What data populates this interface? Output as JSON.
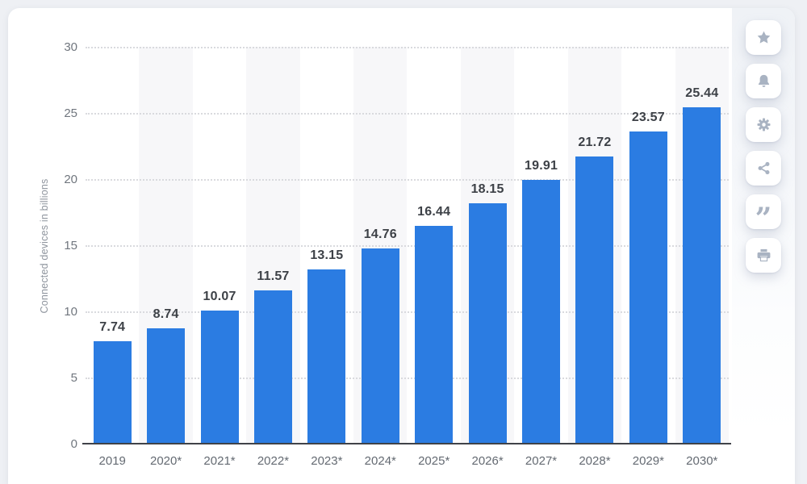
{
  "chart_data": {
    "type": "bar",
    "title": "",
    "categories": [
      "2019",
      "2020*",
      "2021*",
      "2022*",
      "2023*",
      "2024*",
      "2025*",
      "2026*",
      "2027*",
      "2028*",
      "2029*",
      "2030*"
    ],
    "values": [
      7.74,
      8.74,
      10.07,
      11.57,
      13.15,
      14.76,
      16.44,
      18.15,
      19.91,
      21.72,
      23.57,
      25.44
    ],
    "value_labels": [
      "7.74",
      "8.74",
      "10.07",
      "11.57",
      "13.15",
      "14.76",
      "16.44",
      "18.15",
      "19.91",
      "21.72",
      "23.57",
      "25.44"
    ],
    "xlabel": "",
    "ylabel": "Connected devices in billions",
    "ylim": [
      0,
      30
    ],
    "yticks": [
      0,
      5,
      10,
      15,
      20,
      25,
      30
    ],
    "grid": "horizontal-dotted",
    "plot_bands": "alternating light stripes behind every second category",
    "legend": "none",
    "bar_color": "#2b7ce2",
    "plot_band_color": "#f7f7f9",
    "gridline_color": "#d9dade",
    "axis_line_color": "#404248",
    "value_label_color": "#3d4147",
    "tick_label_color": "#70767e"
  },
  "toolbar": {
    "buttons": [
      {
        "id": "favorite",
        "icon": "star-icon"
      },
      {
        "id": "notifications",
        "icon": "bell-icon"
      },
      {
        "id": "settings",
        "icon": "gear-icon"
      },
      {
        "id": "share",
        "icon": "share-icon"
      },
      {
        "id": "cite",
        "icon": "quote-icon"
      },
      {
        "id": "print",
        "icon": "print-icon"
      }
    ],
    "quote_glyph": "”"
  }
}
